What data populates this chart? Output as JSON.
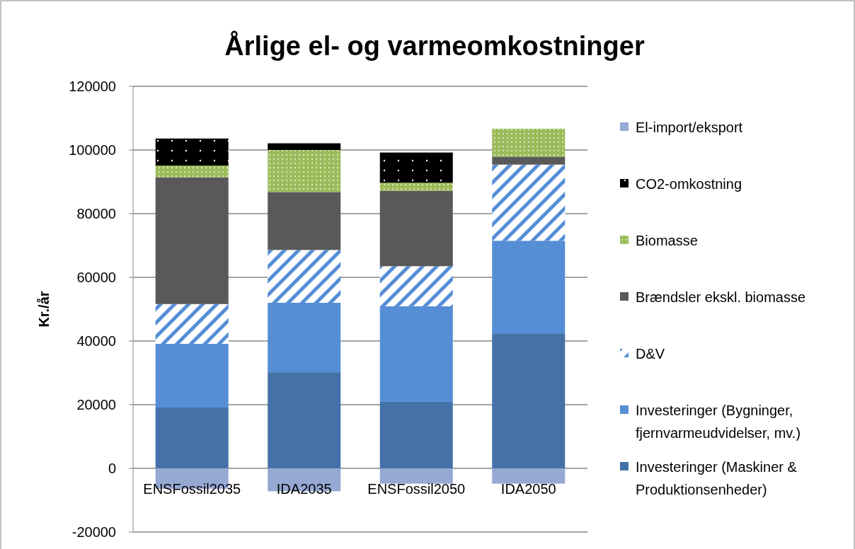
{
  "chart_data": {
    "type": "bar",
    "title": "Årlige el- og varmeomkostninger",
    "ylabel": "Kr./år",
    "stacked": true,
    "categories": [
      "ENSFossil2035",
      "IDA2035",
      "ENSFossil2050",
      "IDA2050"
    ],
    "series": [
      {
        "name": "Investeringer (Maskiner & Produktionsenheder)",
        "color": "#4472a8",
        "values": [
          19100,
          30200,
          20900,
          42400
        ]
      },
      {
        "name": "Investeringer (Bygninger, fjernvarmeudvidelser, mv.)",
        "color": "#558ed5",
        "values": [
          20000,
          21800,
          30000,
          29100
        ]
      },
      {
        "name": "D&V",
        "color": "#558ed5",
        "values": [
          12500,
          16600,
          12600,
          23900
        ]
      },
      {
        "name": "Brændsler ekskl. biomasse",
        "color": "#595959",
        "values": [
          39800,
          18200,
          23700,
          2500
        ]
      },
      {
        "name": "Biomasse",
        "color": "#9bbb59",
        "values": [
          3700,
          13200,
          2500,
          8800
        ]
      },
      {
        "name": "CO2-omkostning",
        "color": "#000000",
        "values": [
          8500,
          2100,
          9500,
          0
        ]
      },
      {
        "name": "El-import/eksport",
        "color": "#95a9d3",
        "values": [
          -6400,
          -7200,
          -4800,
          -4800
        ]
      }
    ],
    "ylim": [
      -20000,
      120000
    ],
    "yticks": [
      -20000,
      0,
      20000,
      40000,
      60000,
      80000,
      100000,
      120000
    ],
    "grid": "y",
    "legend": "right"
  }
}
